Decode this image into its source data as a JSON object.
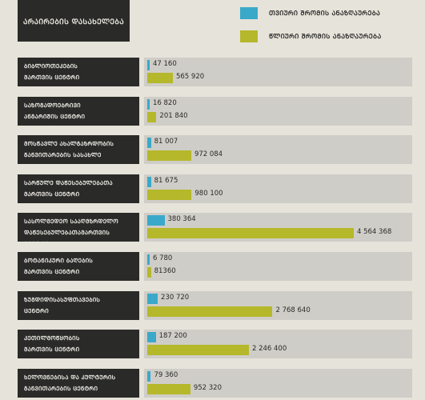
{
  "header": {
    "title": "ᲐᲠᲐᲘᲠᲔᲑᲘᲡ ᲓᲐᲡᲐᲮᲔᲚᲔᲑᲐ"
  },
  "legend": [
    {
      "label": "ᲗᲕᲘᲣᲠᲘ ᲨᲠᲝᲛᲘᲡ ᲐᲜᲐᲖᲦᲐᲣᲠᲔᲑᲐ",
      "color": "#3aa9c9"
    },
    {
      "label": "ᲬᲚᲘᲣᲠᲘ ᲨᲠᲝᲛᲘᲡ ᲐᲜᲐᲖᲦᲐᲣᲠᲔᲑᲐ",
      "color": "#b5b82a"
    }
  ],
  "chart_data": {
    "type": "bar",
    "orientation": "horizontal",
    "categories": [
      [
        "ᲑᲘᲑᲚᲘᲝᲗᲔᲙᲔᲑᲘᲡ",
        "ᲛᲐᲠᲗᲕᲘᲡ ᲪᲔᲜᲢᲠᲘ"
      ],
      [
        "ᲡᲐᲖᲝᲒᲐᲓᲝᲔᲑᲠᲘᲕᲘ",
        "ᲐᲜᲒᲐᲠᲘᲨᲘᲡ ᲪᲔᲜᲢᲠᲘ"
      ],
      [
        "ᲛᲝᲡᲬᲐᲕᲚᲔ ᲐᲮᲐᲚᲒᲐᲖᲠᲓᲝᲑᲘᲡ",
        "ᲒᲐᲜᲕᲘᲗᲐᲠᲔᲑᲘᲡ ᲡᲐᲡᲐᲮᲚᲔ"
      ],
      [
        "ᲡᲐᲠᲬᲣᲚᲔ ᲓᲐᲬᲔᲡᲔᲑᲣᲚᲔᲑᲐᲗᲐ",
        "ᲛᲐᲠᲗᲕᲘᲡ ᲪᲔᲜᲢᲠᲘ"
      ],
      [
        "ᲡᲐᲡᲝᲚᲛᲔᲓᲔᲝ ᲡᲐᲐᲦᲛᲖᲠᲓᲔᲚᲝ",
        "ᲓᲐᲬᲔᲡᲔᲑᲣᲚᲔᲑᲐᲗᲐᲛᲐᲠᲗᲕᲘᲡ ᲪᲔᲜᲢᲠᲘ"
      ],
      [
        "ᲑᲝᲢᲐᲜᲘᲙᲣᲠᲘ ᲑᲐᲦᲔᲑᲘᲡ",
        "ᲛᲐᲠᲗᲕᲘᲡ ᲪᲔᲜᲢᲠᲘ"
      ],
      [
        "ᲖᲣᲒᲓᲘᲓᲘᲡᲐᲡᲣᲤᲗᲐᲕᲔᲑᲘᲡ",
        "ᲪᲔᲜᲢᲠᲘ"
      ],
      [
        "ᲙᲔᲗᲘᲚᲛᲝᲬᲧᲝᲑᲘᲡ",
        "ᲛᲐᲠᲗᲕᲘᲡ ᲪᲔᲜᲢᲠᲘ"
      ],
      [
        "ᲮᲔᲚᲝᲕᲜᲔᲑᲘᲡᲐ ᲓᲐ ᲙᲣᲚᲢᲣᲠᲘᲡ",
        "ᲒᲐᲜᲕᲘᲗᲐᲠᲔᲑᲘᲡ ᲪᲔᲜᲢᲠᲘ"
      ]
    ],
    "series": [
      {
        "name": "ᲗᲕᲘᲣᲠᲘ ᲨᲠᲝᲛᲘᲡ ᲐᲜᲐᲖᲦᲐᲣᲠᲔᲑᲐ",
        "values": [
          47160,
          16820,
          81007,
          81675,
          380364,
          6780,
          230720,
          187200,
          79360
        ],
        "labels": [
          "47 160",
          "16 820",
          "81 007",
          "81 675",
          "380 364",
          "6 780",
          "230 720",
          "187 200",
          "79 360"
        ]
      },
      {
        "name": "ᲬᲚᲘᲣᲠᲘ ᲨᲠᲝᲛᲘᲡ ᲐᲜᲐᲖᲦᲐᲣᲠᲔᲑᲐ",
        "values": [
          565920,
          201840,
          972084,
          980100,
          4564368,
          81360,
          2768640,
          2246400,
          952320
        ],
        "labels": [
          "565 920",
          "201 840",
          "972 084",
          "980 100",
          "4 564 368",
          "81360",
          "2 768 640",
          "2 246 400",
          "952 320"
        ]
      }
    ],
    "xlim": [
      0,
      4564368
    ]
  }
}
